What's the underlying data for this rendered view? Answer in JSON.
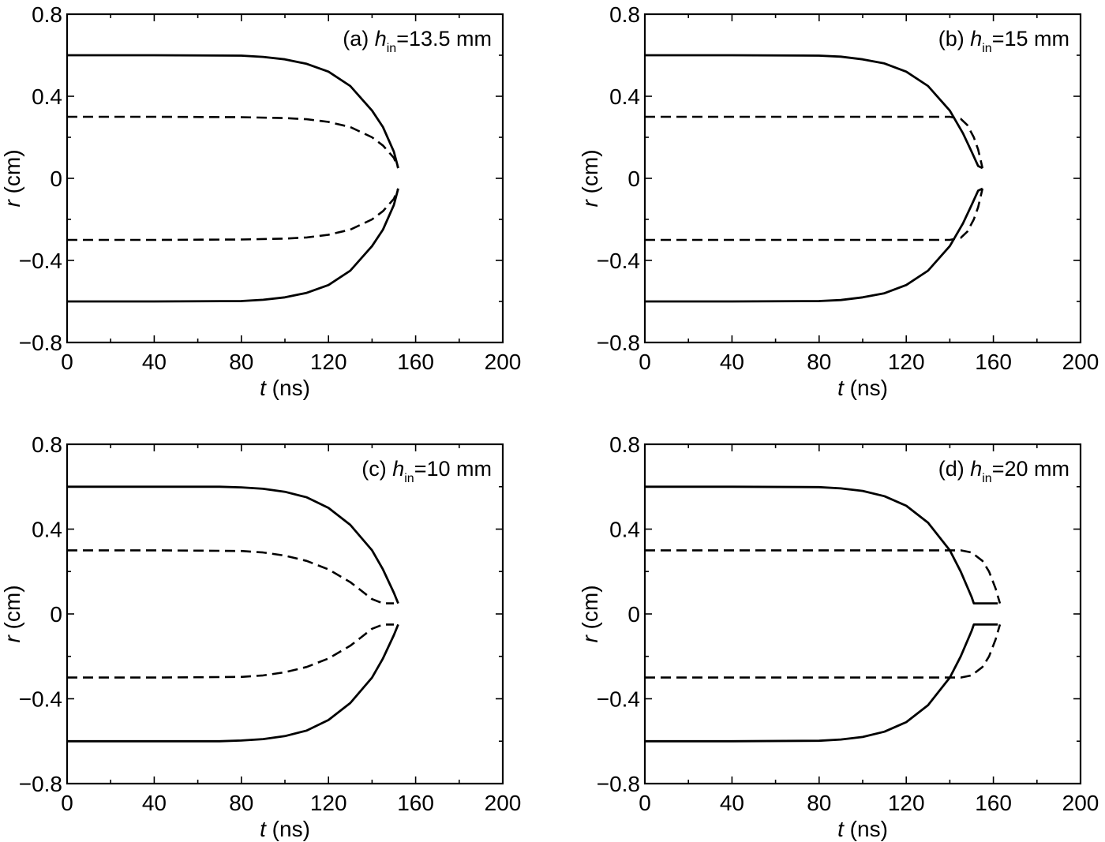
{
  "chart_data": [
    {
      "type": "line",
      "panel_label": {
        "prefix": "(a) ",
        "var": "h",
        "sub": "in",
        "suffix": "=13.5 mm"
      },
      "xlabel": {
        "var": "t",
        "unit": " (ns)"
      },
      "ylabel": {
        "var": "r",
        "unit": " (cm)"
      },
      "xlim": [
        0,
        200
      ],
      "ylim": [
        -0.8,
        0.8
      ],
      "xticks": [
        "0",
        "40",
        "80",
        "120",
        "160",
        "200"
      ],
      "yticks": [
        "0.8",
        "0.4",
        "0",
        "−0.4",
        "−0.8"
      ],
      "series": [
        {
          "style": "solid",
          "x": [
            0,
            40,
            80,
            90,
            100,
            110,
            120,
            130,
            140,
            145,
            150,
            152
          ],
          "y": [
            0.6,
            0.6,
            0.598,
            0.592,
            0.58,
            0.558,
            0.52,
            0.45,
            0.33,
            0.25,
            0.13,
            0.05
          ]
        },
        {
          "style": "solid",
          "x": [
            0,
            40,
            80,
            90,
            100,
            110,
            120,
            130,
            140,
            145,
            150,
            152
          ],
          "y": [
            -0.6,
            -0.6,
            -0.598,
            -0.592,
            -0.58,
            -0.558,
            -0.52,
            -0.45,
            -0.33,
            -0.25,
            -0.13,
            -0.05
          ]
        },
        {
          "style": "dashed",
          "x": [
            0,
            40,
            80,
            100,
            110,
            120,
            130,
            140,
            145,
            150,
            152
          ],
          "y": [
            0.3,
            0.3,
            0.298,
            0.294,
            0.288,
            0.275,
            0.25,
            0.2,
            0.16,
            0.1,
            0.05
          ]
        },
        {
          "style": "dashed",
          "x": [
            0,
            40,
            80,
            100,
            110,
            120,
            130,
            140,
            145,
            150,
            152
          ],
          "y": [
            -0.3,
            -0.3,
            -0.298,
            -0.294,
            -0.288,
            -0.275,
            -0.25,
            -0.2,
            -0.16,
            -0.1,
            -0.05
          ]
        }
      ]
    },
    {
      "type": "line",
      "panel_label": {
        "prefix": "(b) ",
        "var": "h",
        "sub": "in",
        "suffix": "=15 mm"
      },
      "xlabel": {
        "var": "t",
        "unit": " (ns)"
      },
      "ylabel": {
        "var": "r",
        "unit": " (cm)"
      },
      "xlim": [
        0,
        200
      ],
      "ylim": [
        -0.8,
        0.8
      ],
      "xticks": [
        "0",
        "40",
        "80",
        "120",
        "160",
        "200"
      ],
      "yticks": [
        "0.8",
        "0.4",
        "0",
        "−0.4",
        "−0.8"
      ],
      "series": [
        {
          "style": "solid",
          "x": [
            0,
            40,
            80,
            90,
            100,
            110,
            120,
            130,
            140,
            146,
            150,
            153,
            155
          ],
          "y": [
            0.6,
            0.6,
            0.598,
            0.593,
            0.58,
            0.56,
            0.52,
            0.45,
            0.33,
            0.22,
            0.13,
            0.06,
            0.05
          ]
        },
        {
          "style": "solid",
          "x": [
            0,
            40,
            80,
            90,
            100,
            110,
            120,
            130,
            140,
            146,
            150,
            153,
            155
          ],
          "y": [
            -0.6,
            -0.6,
            -0.598,
            -0.593,
            -0.58,
            -0.56,
            -0.52,
            -0.45,
            -0.33,
            -0.22,
            -0.13,
            -0.06,
            -0.05
          ]
        },
        {
          "style": "dashed",
          "x": [
            0,
            80,
            140,
            145,
            148,
            151,
            153,
            155
          ],
          "y": [
            0.3,
            0.3,
            0.3,
            0.29,
            0.26,
            0.2,
            0.14,
            0.05
          ]
        },
        {
          "style": "dashed",
          "x": [
            0,
            80,
            140,
            145,
            148,
            151,
            153,
            155
          ],
          "y": [
            -0.3,
            -0.3,
            -0.3,
            -0.29,
            -0.26,
            -0.2,
            -0.14,
            -0.05
          ]
        }
      ]
    },
    {
      "type": "line",
      "panel_label": {
        "prefix": "(c) ",
        "var": "h",
        "sub": "in",
        "suffix": "=10 mm"
      },
      "xlabel": {
        "var": "t",
        "unit": " (ns)"
      },
      "ylabel": {
        "var": "r",
        "unit": " (cm)"
      },
      "xlim": [
        0,
        200
      ],
      "ylim": [
        -0.8,
        0.8
      ],
      "xticks": [
        "0",
        "40",
        "80",
        "120",
        "160",
        "200"
      ],
      "yticks": [
        "0.8",
        "0.4",
        "0",
        "−0.4",
        "−0.8"
      ],
      "series": [
        {
          "style": "solid",
          "x": [
            0,
            40,
            70,
            80,
            90,
            100,
            110,
            120,
            130,
            140,
            145,
            150,
            152
          ],
          "y": [
            0.6,
            0.6,
            0.6,
            0.597,
            0.59,
            0.576,
            0.55,
            0.5,
            0.42,
            0.3,
            0.21,
            0.1,
            0.05
          ]
        },
        {
          "style": "solid",
          "x": [
            0,
            40,
            70,
            80,
            90,
            100,
            110,
            120,
            130,
            140,
            145,
            150,
            152
          ],
          "y": [
            -0.6,
            -0.6,
            -0.6,
            -0.597,
            -0.59,
            -0.576,
            -0.55,
            -0.5,
            -0.42,
            -0.3,
            -0.21,
            -0.1,
            -0.05
          ]
        },
        {
          "style": "dashed",
          "x": [
            0,
            40,
            80,
            90,
            100,
            110,
            120,
            130,
            135,
            140,
            145,
            150
          ],
          "y": [
            0.3,
            0.3,
            0.297,
            0.29,
            0.275,
            0.25,
            0.21,
            0.15,
            0.11,
            0.07,
            0.05,
            0.05
          ]
        },
        {
          "style": "dashed",
          "x": [
            0,
            40,
            80,
            90,
            100,
            110,
            120,
            130,
            135,
            140,
            145,
            150
          ],
          "y": [
            -0.3,
            -0.3,
            -0.297,
            -0.29,
            -0.275,
            -0.25,
            -0.21,
            -0.15,
            -0.11,
            -0.07,
            -0.05,
            -0.05
          ]
        }
      ]
    },
    {
      "type": "line",
      "panel_label": {
        "prefix": "(d) ",
        "var": "h",
        "sub": "in",
        "suffix": "=20 mm"
      },
      "xlabel": {
        "var": "t",
        "unit": " (ns)"
      },
      "ylabel": {
        "var": "r",
        "unit": " (cm)"
      },
      "xlim": [
        0,
        200
      ],
      "ylim": [
        -0.8,
        0.8
      ],
      "xticks": [
        "0",
        "40",
        "80",
        "120",
        "160",
        "200"
      ],
      "yticks": [
        "0.8",
        "0.4",
        "0",
        "−0.4",
        "−0.8"
      ],
      "series": [
        {
          "style": "solid",
          "x": [
            0,
            40,
            80,
            90,
            100,
            110,
            120,
            130,
            140,
            145,
            150,
            151,
            162
          ],
          "y": [
            0.6,
            0.6,
            0.598,
            0.592,
            0.58,
            0.555,
            0.51,
            0.43,
            0.3,
            0.2,
            0.08,
            0.05,
            0.05
          ]
        },
        {
          "style": "solid",
          "x": [
            0,
            40,
            80,
            90,
            100,
            110,
            120,
            130,
            140,
            145,
            150,
            151,
            162
          ],
          "y": [
            -0.6,
            -0.6,
            -0.598,
            -0.592,
            -0.58,
            -0.555,
            -0.51,
            -0.43,
            -0.3,
            -0.2,
            -0.08,
            -0.05,
            -0.05
          ]
        },
        {
          "style": "dashed",
          "x": [
            0,
            80,
            145,
            150,
            155,
            158,
            161,
            163
          ],
          "y": [
            0.3,
            0.3,
            0.3,
            0.29,
            0.25,
            0.2,
            0.12,
            0.05
          ]
        },
        {
          "style": "dashed",
          "x": [
            0,
            80,
            145,
            150,
            155,
            158,
            161,
            163
          ],
          "y": [
            -0.3,
            -0.3,
            -0.3,
            -0.29,
            -0.25,
            -0.2,
            -0.12,
            -0.05
          ]
        }
      ]
    }
  ]
}
